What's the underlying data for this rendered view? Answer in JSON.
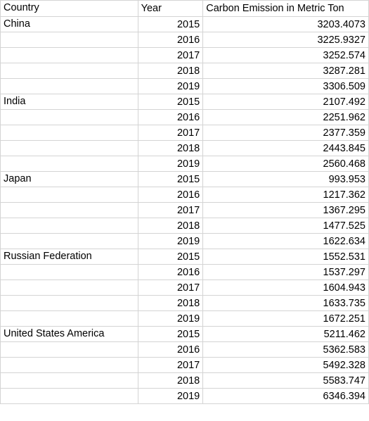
{
  "headers": [
    "Country",
    "Year",
    "Carbon Emission in Metric Ton"
  ],
  "groups": [
    {
      "country": "China",
      "rows": [
        {
          "year": "2015",
          "value": "3203.4073"
        },
        {
          "year": "2016",
          "value": "3225.9327"
        },
        {
          "year": "2017",
          "value": "3252.574"
        },
        {
          "year": "2018",
          "value": "3287.281"
        },
        {
          "year": "2019",
          "value": "3306.509"
        }
      ]
    },
    {
      "country": "India",
      "rows": [
        {
          "year": "2015",
          "value": "2107.492"
        },
        {
          "year": "2016",
          "value": "2251.962"
        },
        {
          "year": "2017",
          "value": "2377.359"
        },
        {
          "year": "2018",
          "value": "2443.845"
        },
        {
          "year": "2019",
          "value": "2560.468"
        }
      ]
    },
    {
      "country": "Japan",
      "rows": [
        {
          "year": "2015",
          "value": "993.953"
        },
        {
          "year": "2016",
          "value": "1217.362"
        },
        {
          "year": "2017",
          "value": "1367.295"
        },
        {
          "year": "2018",
          "value": "1477.525"
        },
        {
          "year": "2019",
          "value": "1622.634"
        }
      ]
    },
    {
      "country": "Russian Federation",
      "rows": [
        {
          "year": "2015",
          "value": "1552.531"
        },
        {
          "year": "2016",
          "value": "1537.297"
        },
        {
          "year": "2017",
          "value": "1604.943"
        },
        {
          "year": "2018",
          "value": "1633.735"
        },
        {
          "year": "2019",
          "value": "1672.251"
        }
      ]
    },
    {
      "country": "United States America",
      "rows": [
        {
          "year": "2015",
          "value": "5211.462"
        },
        {
          "year": "2016",
          "value": "5362.583"
        },
        {
          "year": "2017",
          "value": "5492.328"
        },
        {
          "year": "2018",
          "value": "5583.747"
        },
        {
          "year": "2019",
          "value": "6346.394"
        }
      ]
    }
  ]
}
